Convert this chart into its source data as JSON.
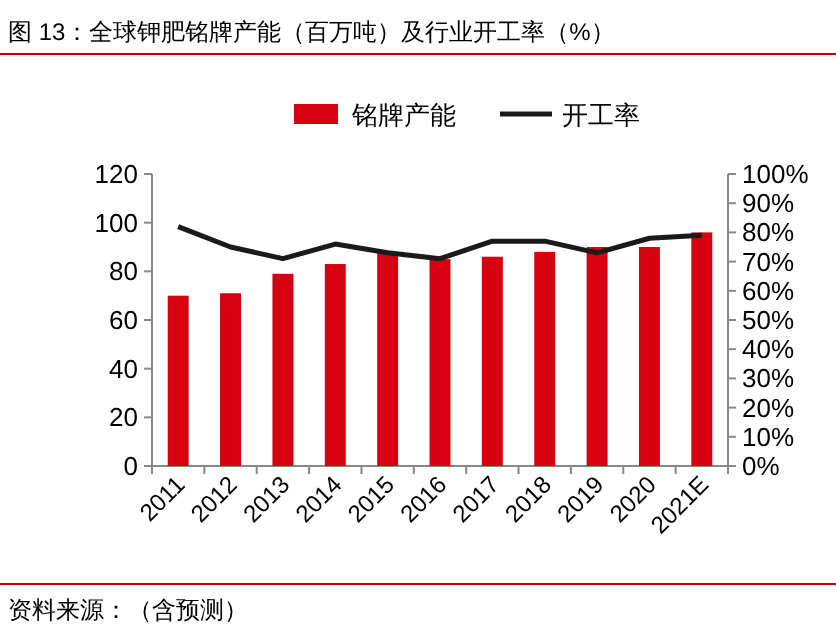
{
  "chart_data": {
    "type": "bar",
    "title": "图 13：全球钾肥铭牌产能（百万吨）及行业开工率（%）",
    "categories": [
      "2011",
      "2012",
      "2013",
      "2014",
      "2015",
      "2016",
      "2017",
      "2018",
      "2019",
      "2020",
      "2021E"
    ],
    "series": [
      {
        "name": "铭牌产能",
        "color": "#d7000f",
        "values": [
          70,
          71,
          79,
          83,
          88,
          85,
          86,
          88,
          90,
          90,
          96
        ]
      },
      {
        "name": "开工率",
        "type": "line",
        "axis": "y2",
        "color": "#1a1a1a",
        "values": [
          82,
          75,
          71,
          76,
          73,
          71,
          77,
          77,
          73,
          78,
          79
        ]
      }
    ],
    "ylim": [
      0,
      120
    ],
    "yticks": [
      0,
      20,
      40,
      60,
      80,
      100,
      120
    ],
    "y2lim": [
      0,
      100
    ],
    "y2ticks": [
      {
        "value": 0,
        "label": "0%"
      },
      {
        "value": 10,
        "label": "10%"
      },
      {
        "value": 20,
        "label": "20%"
      },
      {
        "value": 30,
        "label": "30%"
      },
      {
        "value": 40,
        "label": "40%"
      },
      {
        "value": 50,
        "label": "50%"
      },
      {
        "value": 60,
        "label": "60%"
      },
      {
        "value": 70,
        "label": "70%"
      },
      {
        "value": 80,
        "label": "80%"
      },
      {
        "value": 90,
        "label": "90%"
      },
      {
        "value": 100,
        "label": "100%"
      }
    ],
    "legend": "top",
    "grid": false,
    "annotations": [
      "资料来源：（含预测）"
    ]
  }
}
